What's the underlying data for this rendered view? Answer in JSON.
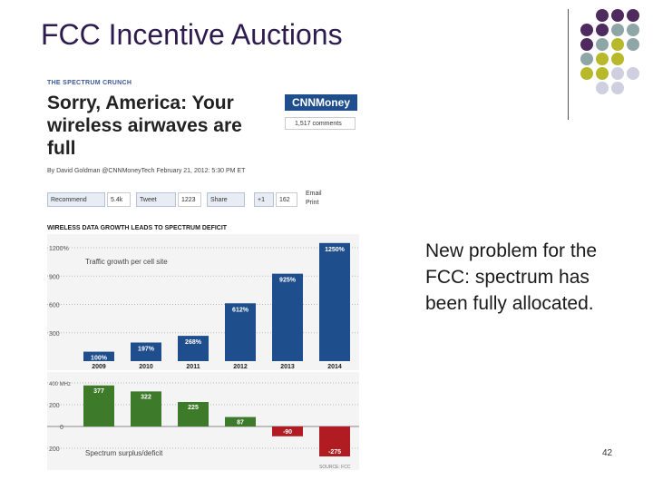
{
  "slide": {
    "title": "FCC Incentive Auctions",
    "body": "New problem for the FCC: spectrum has been fully allocated.",
    "page_number": "42"
  },
  "article": {
    "kicker": "THE SPECTRUM CRUNCH",
    "headline": "Sorry, America: Your wireless airwaves are full",
    "brand": "CNNMoney",
    "comments": "1,517 comments",
    "byline": "By David Goldman @CNNMoneyTech February 21, 2012: 5:30 PM ET",
    "share": {
      "recommend": "Recommend",
      "recommend_count": "5.4k",
      "tweet": "Tweet",
      "tweet_count": "1223",
      "share": "Share",
      "share_count": "",
      "plus": "+1",
      "plus_count": "162",
      "email": "Email",
      "print": "Print"
    }
  },
  "colors": {
    "title": "#2e1c4e",
    "blue_bar": "#1f4e8c",
    "green_bar": "#3d7a2a",
    "red_bar": "#b01c22",
    "dot_purple": "#4e2a5e",
    "dot_teal": "#8fa6a6",
    "dot_olive": "#b7b82a",
    "dot_lavender": "#cfcfe0"
  },
  "chart_data": {
    "type": "bar",
    "title": "WIRELESS DATA GROWTH LEADS TO SPECTRUM DEFICIT",
    "categories": [
      "2009",
      "2010",
      "2011",
      "2012",
      "2013",
      "2014"
    ],
    "top": {
      "label": "Traffic growth per cell site",
      "unit": "%",
      "y_ticks": [
        "1200%",
        "900",
        "600",
        "300"
      ],
      "values": [
        100,
        197,
        268,
        612,
        925,
        1250
      ],
      "value_labels": [
        "100%",
        "197%",
        "268%",
        "612%",
        "925%",
        "1250%"
      ],
      "ylim": [
        0,
        1200
      ]
    },
    "bottom": {
      "label": "Spectrum surplus/deficit",
      "y_ticks": [
        "400 MHz",
        "200",
        "0",
        "200"
      ],
      "values": [
        377,
        322,
        225,
        87,
        -90,
        -275
      ],
      "value_labels": [
        "377",
        "322",
        "225",
        "87",
        "-90",
        "-275"
      ],
      "ylim": [
        -200,
        400
      ]
    },
    "source": "SOURCE: FCC"
  }
}
